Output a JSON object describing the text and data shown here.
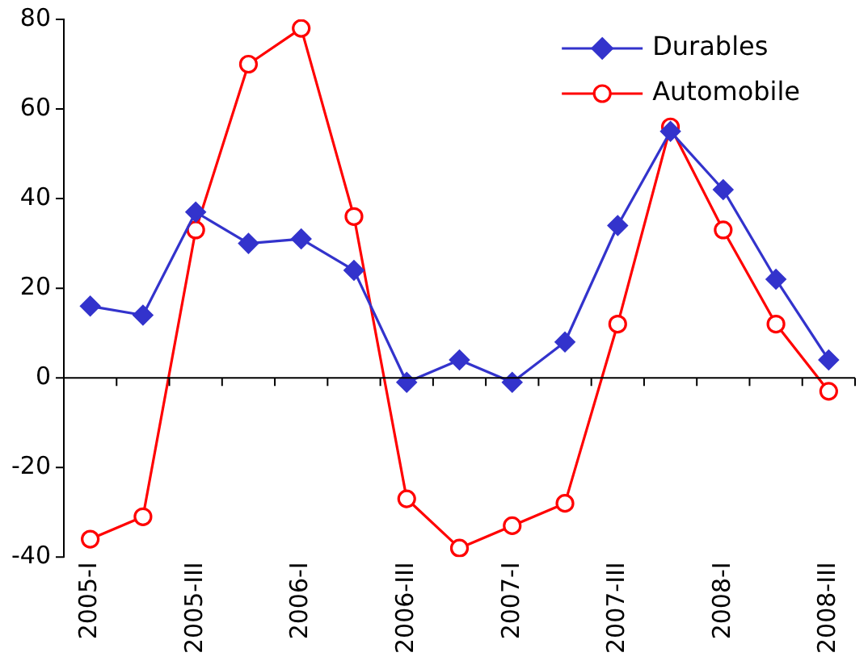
{
  "chart_data": {
    "type": "line",
    "categories": [
      "2005-I",
      null,
      "2005-III",
      null,
      "2006-I",
      null,
      "2006-III",
      null,
      "2007-I",
      null,
      "2007-III",
      null,
      "2008-I",
      null,
      "2008-III"
    ],
    "series": [
      {
        "name": "Durables",
        "color": "#3333cc",
        "marker": "diamond",
        "values": [
          16,
          14,
          37,
          30,
          31,
          24,
          -1,
          4,
          -1,
          8,
          34,
          55,
          42,
          22,
          4
        ]
      },
      {
        "name": "Automobile",
        "color": "#ff0000",
        "marker": "circle",
        "values": [
          -36,
          -31,
          33,
          70,
          78,
          36,
          -27,
          -38,
          -33,
          -28,
          12,
          56,
          33,
          12,
          -3
        ]
      }
    ],
    "ylim": [
      -40,
      80
    ],
    "yticks": [
      -40,
      -20,
      0,
      20,
      40,
      60,
      80
    ],
    "legend": "top right",
    "line_style": "solid"
  }
}
